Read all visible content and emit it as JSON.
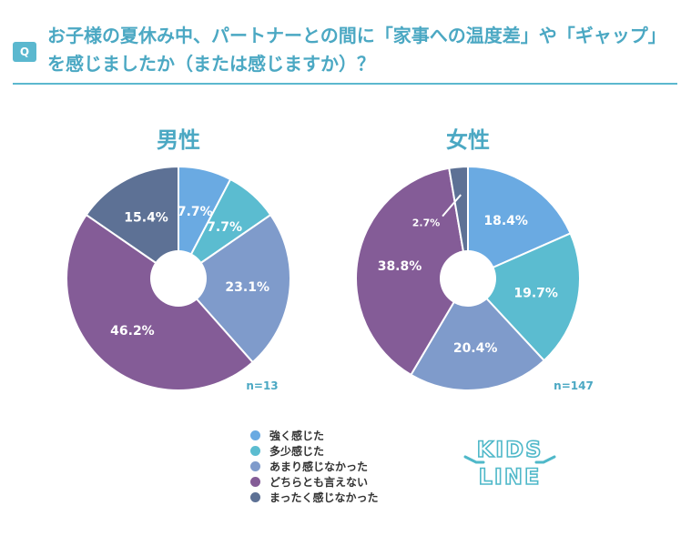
{
  "question": {
    "badge": "Q",
    "text": "お子様の夏休み中、パートナーとの間に「家事への温度差」や「ギャップ」\nを感じましたか（または感じますか）？"
  },
  "legend": [
    {
      "label": "強く感じた",
      "color": "#6aaae2"
    },
    {
      "label": "多少感じた",
      "color": "#5bbcd0"
    },
    {
      "label": "あまり感じなかった",
      "color": "#7f9bcb"
    },
    {
      "label": "どちらとも言えない",
      "color": "#845c97"
    },
    {
      "label": "まったく感じなかった",
      "color": "#5d7195"
    }
  ],
  "logo": {
    "line1": "KIDS",
    "line2": "LINE"
  },
  "chart_data": [
    {
      "type": "pie",
      "title": "男性",
      "n_label": "n=13",
      "categories": [
        "強く感じた",
        "多少感じた",
        "あまり感じなかった",
        "どちらとも言えない",
        "まったく感じなかった"
      ],
      "values": [
        7.7,
        7.7,
        23.1,
        46.2,
        15.4
      ],
      "labels": [
        "7.7%",
        "7.7%",
        "23.1%",
        "46.2%",
        "15.4%"
      ],
      "colors": [
        "#6aaae2",
        "#5bbcd0",
        "#7f9bcb",
        "#845c97",
        "#5d7195"
      ]
    },
    {
      "type": "pie",
      "title": "女性",
      "n_label": "n=147",
      "categories": [
        "強く感じた",
        "多少感じた",
        "あまり感じなかった",
        "どちらとも言えない",
        "まったく感じなかった"
      ],
      "values": [
        18.4,
        19.7,
        20.4,
        38.8,
        2.7
      ],
      "labels": [
        "18.4%",
        "19.7%",
        "20.4%",
        "38.8%",
        "2.7%"
      ],
      "colors": [
        "#6aaae2",
        "#5bbcd0",
        "#7f9bcb",
        "#845c97",
        "#5d7195"
      ]
    }
  ]
}
